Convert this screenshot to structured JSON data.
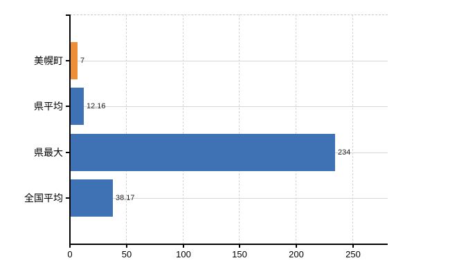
{
  "chart_data": {
    "type": "bar",
    "orientation": "horizontal",
    "title": "",
    "xlabel": "",
    "ylabel": "",
    "categories": [
      "美幌町",
      "県平均",
      "県最大",
      "全国平均"
    ],
    "values": [
      7,
      12.16,
      234,
      38.17
    ],
    "value_labels": [
      "7",
      "12.16",
      "234",
      "38.17"
    ],
    "bar_colors": [
      "#EC8F38",
      "#3F72B5",
      "#3F72B5",
      "#3F72B5"
    ],
    "x_ticks": [
      0,
      50,
      100,
      150,
      200,
      250
    ],
    "x_tick_labels": [
      "0",
      "50",
      "100",
      "150",
      "200",
      "250"
    ],
    "xlim": [
      0,
      280.5
    ],
    "grid": "vertical dashed gridlines at x ticks, horizontal solid gridlines at category centers, dashed top plot border",
    "legend": "none"
  },
  "colors": {
    "background": "#ffffff",
    "axis": "#000000",
    "grid_vertical": "#d4d4d4",
    "grid_horizontal": "#d2d8d2",
    "plot_top_border": "#c9c9c9",
    "value_label": "#222222",
    "tick_label": "#000000",
    "accent_orange": "#EC8F38",
    "accent_blue": "#3F72B5"
  }
}
